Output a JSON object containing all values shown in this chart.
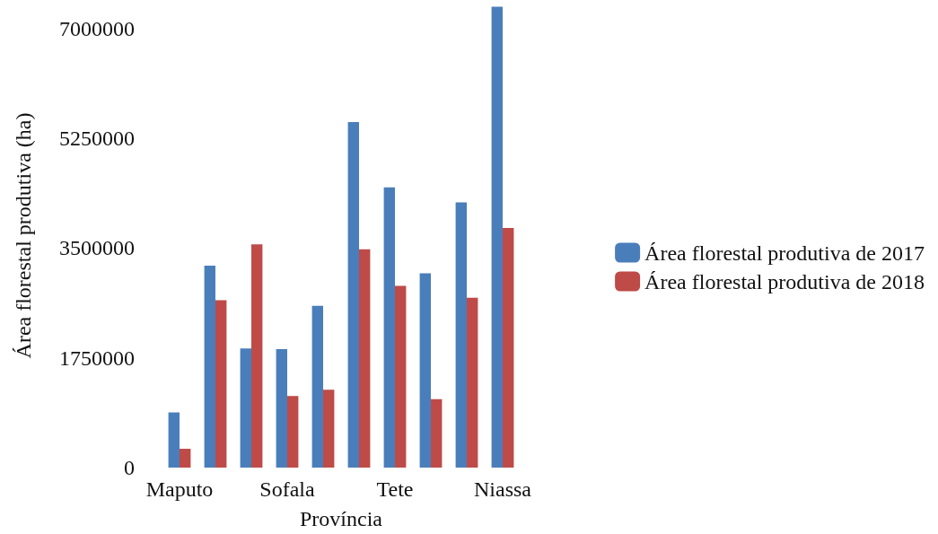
{
  "chart_data": {
    "type": "bar",
    "xlabel": "Província",
    "ylabel": "Área florestal produtiva (ha)",
    "categories": [
      "Maputo",
      null,
      null,
      "Sofala",
      null,
      null,
      "Tete",
      null,
      null,
      "Niassa"
    ],
    "series": [
      {
        "name": "Área florestal produtiva de 2017",
        "color": "#4a7ebb",
        "values": [
          880000,
          3220000,
          1900000,
          1890000,
          2580000,
          5510000,
          4470000,
          3100000,
          4230000,
          7350000
        ]
      },
      {
        "name": "Área florestal produtiva de 2018",
        "color": "#be4b48",
        "values": [
          300000,
          2670000,
          3560000,
          1140000,
          1240000,
          3480000,
          2900000,
          1090000,
          2710000,
          3820000
        ]
      }
    ],
    "ylim": [
      0,
      7400000
    ],
    "yticks": [
      0,
      1750000,
      3500000,
      5250000,
      7000000
    ],
    "grid": false,
    "legend": "right"
  }
}
